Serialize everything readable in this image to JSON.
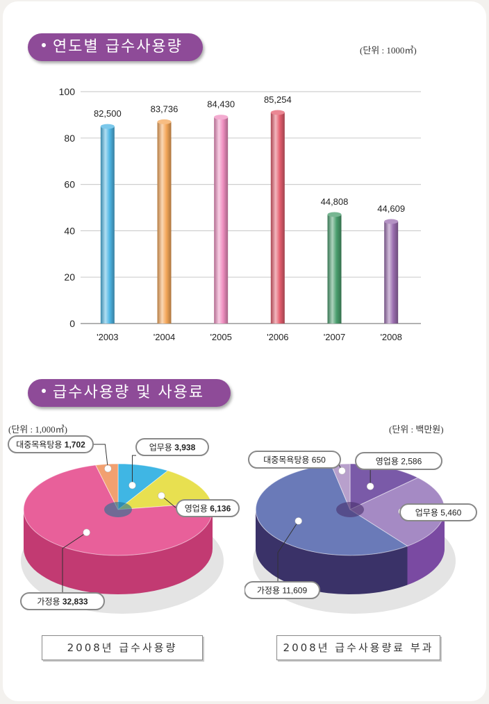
{
  "section1": {
    "title": "연도별 급수사용량",
    "unit": "(단위 : 1000㎥)"
  },
  "section2": {
    "title": "급수사용량 및 사용료",
    "unit_left": "(단위 : 1,000㎥)",
    "unit_right": "(단위 : 백만원)",
    "caption_left": "2008년 급수사용량",
    "caption_right": "2008년 급수사용량료 부과"
  },
  "chart_data": [
    {
      "type": "bar",
      "categories": [
        "'2003",
        "'2004",
        "'2005",
        "'2006",
        "'2007",
        "'2008"
      ],
      "values": [
        82500,
        83736,
        84430,
        85254,
        44808,
        44609
      ],
      "value_labels": [
        "82,500",
        "83,736",
        "84,430",
        "85,254",
        "44,808",
        "44,609"
      ],
      "display_values": [
        85,
        87,
        89,
        91,
        47,
        44
      ],
      "yticks": [
        "0",
        "20",
        "40",
        "60",
        "80",
        "100"
      ],
      "ylim": [
        0,
        100
      ],
      "grid": true,
      "colors": [
        "#4fb6e4",
        "#f4a75a",
        "#ef8fc0",
        "#e45f6f",
        "#4a9e6e",
        "#9b6eb0"
      ]
    },
    {
      "type": "pie",
      "labels": [
        "업무용",
        "영업용",
        "가정용",
        "대중목욕탕용"
      ],
      "values": [
        3938,
        6136,
        32833,
        1702
      ],
      "value_labels": [
        "3,938",
        "6,136",
        "32,833",
        "1,702"
      ],
      "colors": [
        "#3fb6e4",
        "#e8e050",
        "#e8609a",
        "#f2a070"
      ],
      "side_colors": [
        "#2a8db6",
        "#b8b63a",
        "#c23a72",
        "#c8784a"
      ]
    },
    {
      "type": "pie",
      "labels": [
        "영업용",
        "업무용",
        "가정용",
        "대중목욕탕용"
      ],
      "values": [
        2586,
        5460,
        11609,
        650
      ],
      "value_labels": [
        "2,586",
        "5,460",
        "11,609",
        "650"
      ],
      "colors": [
        "#7a5aa8",
        "#a58ac4",
        "#6a7ab8",
        "#b8a0cc"
      ],
      "side_colors": [
        "#5a3a88",
        "#7a4aa2",
        "#3a3268",
        "#8a70a4"
      ]
    }
  ]
}
